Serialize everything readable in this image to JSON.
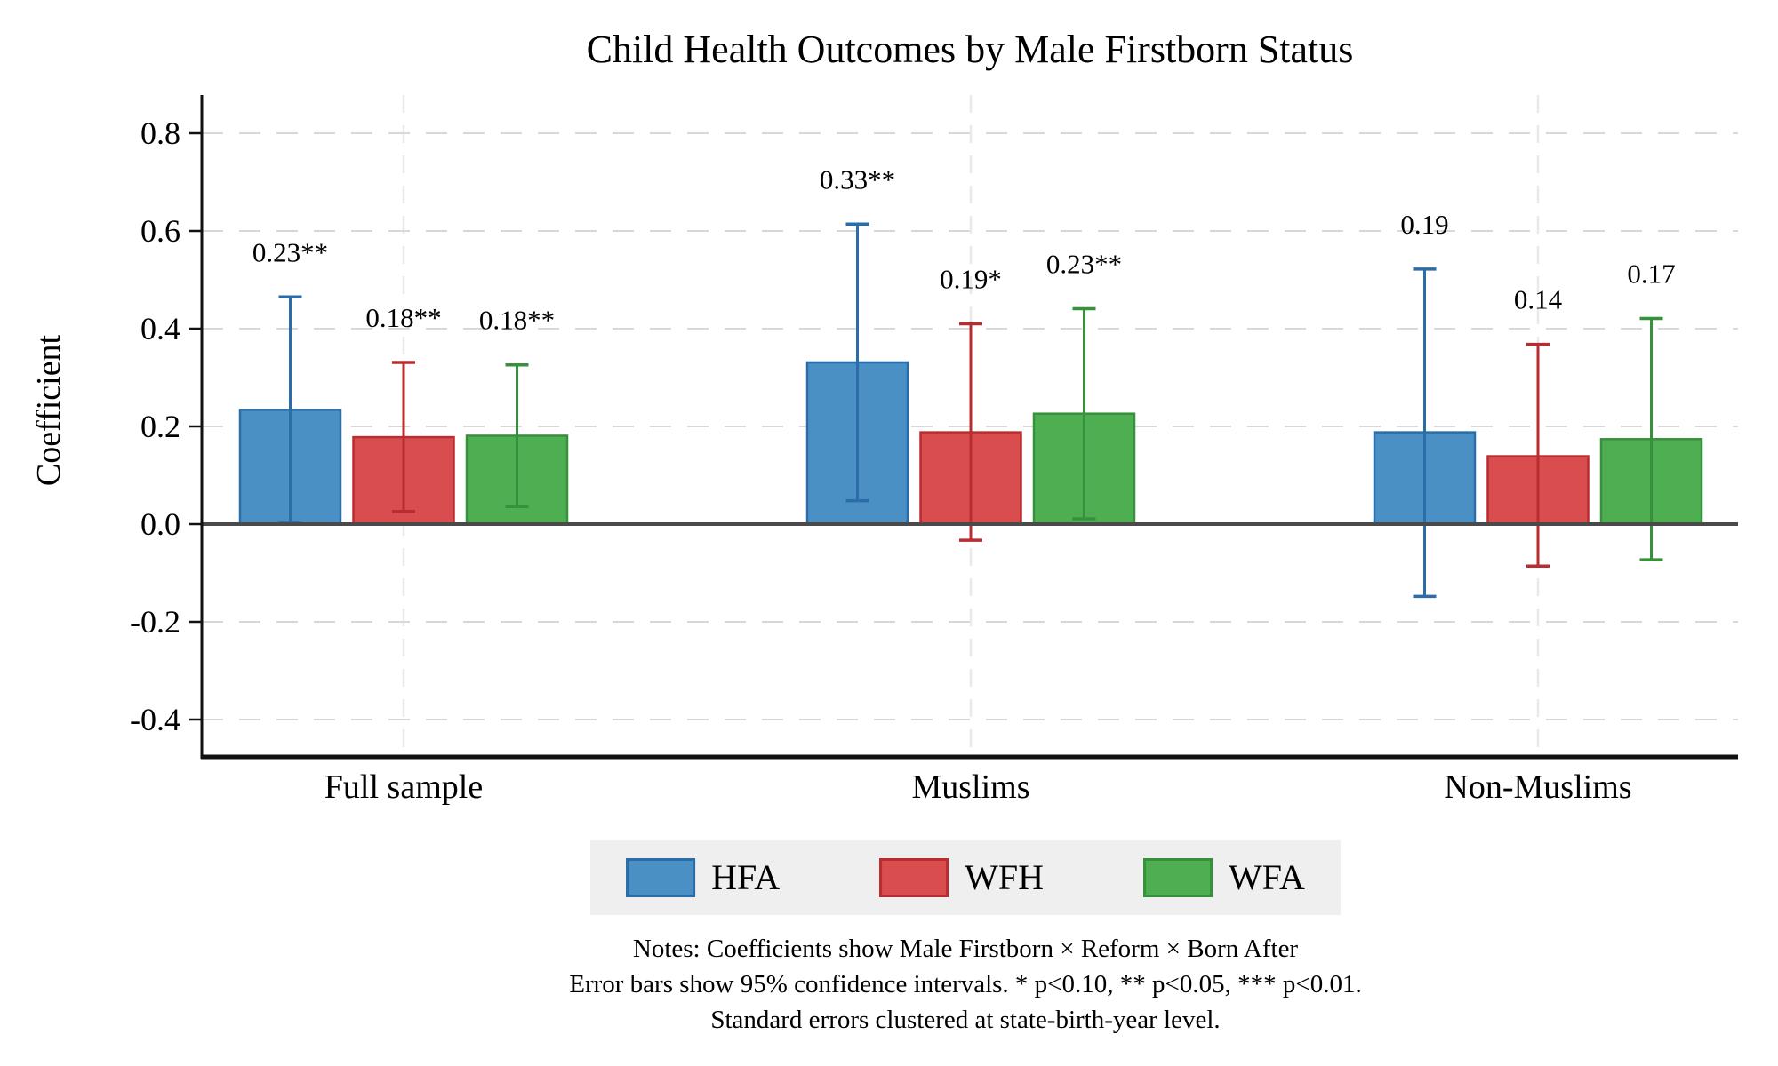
{
  "title": "Child Health Outcomes by Male Firstborn Status",
  "y_axis": {
    "label": "Coefficient"
  },
  "x_axis": {
    "categories": [
      "Full sample",
      "Muslims",
      "Non-Muslims"
    ]
  },
  "legend": {
    "position": "bottom-center",
    "background": "#efefef",
    "items": [
      {
        "label": "HFA",
        "fill": "#4a90c5",
        "border": "#2a6da8"
      },
      {
        "label": "WFH",
        "fill": "#d94d4f",
        "border": "#b92d30"
      },
      {
        "label": "WFA",
        "fill": "#4daf51",
        "border": "#37913c"
      }
    ]
  },
  "notes": [
    "Notes: Coefficients show Male Firstborn × Reform × Born After",
    "Error bars show 95% confidence intervals. * p<0.10, ** p<0.05, *** p<0.01.",
    "Standard errors clustered at state-birth-year level."
  ],
  "chart_data": {
    "type": "bar",
    "title": "Child Health Outcomes by Male Firstborn Status",
    "xlabel": "",
    "ylabel": "Coefficient",
    "categories": [
      "Full sample",
      "Muslims",
      "Non-Muslims"
    ],
    "series": [
      {
        "name": "HFA",
        "fill": "#4a90c5",
        "stroke": "#2a6da8",
        "values": [
          0.234,
          0.331,
          0.188
        ],
        "ci_low": [
          0.002,
          0.048,
          -0.148
        ],
        "ci_high": [
          0.465,
          0.614,
          0.522
        ],
        "labels": [
          "0.23**",
          "0.33**",
          "0.19"
        ]
      },
      {
        "name": "WFH",
        "fill": "#d94d4f",
        "stroke": "#b92d30",
        "values": [
          0.178,
          0.188,
          0.139
        ],
        "ci_low": [
          0.026,
          -0.033,
          -0.086
        ],
        "ci_high": [
          0.331,
          0.41,
          0.368
        ],
        "labels": [
          "0.18**",
          "0.19*",
          "0.14"
        ]
      },
      {
        "name": "WFA",
        "fill": "#4daf51",
        "stroke": "#37913c",
        "values": [
          0.181,
          0.226,
          0.174
        ],
        "ci_low": [
          0.036,
          0.011,
          -0.073
        ],
        "ci_high": [
          0.326,
          0.441,
          0.421
        ],
        "labels": [
          "0.18**",
          "0.23**",
          "0.17"
        ]
      }
    ],
    "yticks": [
      0.8,
      0.6,
      0.4,
      0.2,
      0.0,
      -0.2,
      -0.4
    ],
    "ylim": [
      -0.48,
      0.88
    ],
    "grid": "dashed horizontal gridlines at yticks (solid dark line at 0), light dashed vertical gridlines at category centers",
    "error_bars": "95% confidence intervals with caps",
    "legend_position": "bottom center, gray box"
  }
}
